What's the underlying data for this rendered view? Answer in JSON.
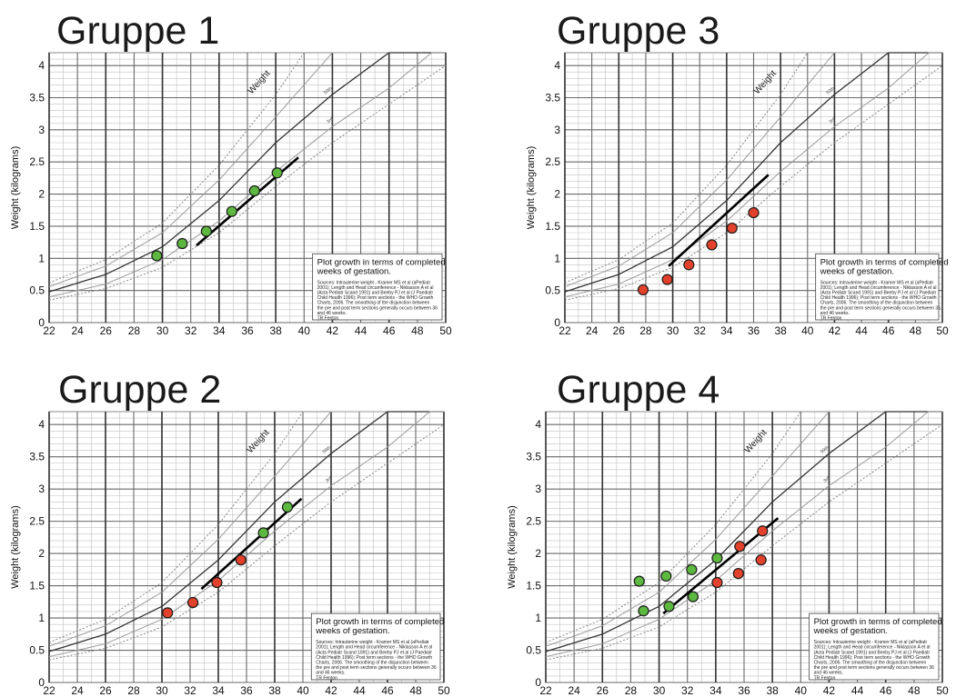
{
  "chart_data": [
    {
      "type": "scatter",
      "title": "Gruppe 1",
      "ylabel": "Weight (kilograms)",
      "xlim": [
        22,
        50
      ],
      "ylim": [
        0,
        4.2
      ],
      "x_ticks": [
        22,
        24,
        26,
        28,
        30,
        32,
        34,
        36,
        38,
        40,
        42,
        44,
        46,
        48,
        50
      ],
      "x_tick_labels": [
        "22",
        "24",
        "26",
        "28",
        "30",
        "32",
        "34",
        "36",
        "38",
        "40",
        "42",
        "44",
        "46",
        "48",
        "50"
      ],
      "y_ticks": [
        0,
        0.5,
        1,
        1.5,
        2,
        2.5,
        3,
        3.5,
        4
      ],
      "y_tick_labels": [
        "0",
        "0.5",
        "1",
        "1.5",
        "2",
        "2.5",
        "3",
        "3.5",
        "4"
      ],
      "curve_label": "Weight",
      "percentile_labels": [
        "50th",
        "3rd"
      ],
      "note_title": "Plot growth in terms of completed weeks of gestation.",
      "note_body": "Sources: Intrauterine weight - Kramer MS et al (aPediatr 2001); Length and Head circumference - Niklasson A et al (Acta Pediatr Scand 1991) and Beeby PJ et al (J Paediatr Child Health 1996); Post term sections - the WHO Growth Charts, 2006.  The smoothing of the disjunction between the pre and post term sections generally occurs between 36 and 46 weeks.",
      "note_author": "TR Fenton",
      "trend_line": {
        "x": [
          32.4,
          39.6
        ],
        "y": [
          1.2,
          2.57
        ]
      },
      "series": [
        {
          "color": "#5cb83f",
          "points": [
            [
              29.6,
              1.04
            ],
            [
              31.4,
              1.23
            ],
            [
              33.1,
              1.42
            ],
            [
              34.9,
              1.73
            ],
            [
              36.5,
              2.05
            ],
            [
              38.1,
              2.33
            ]
          ]
        }
      ]
    },
    {
      "type": "scatter",
      "title": "Gruppe 3",
      "ylabel": "Weight (kilograms)",
      "xlim": [
        22,
        50
      ],
      "ylim": [
        0,
        4.2
      ],
      "x_ticks": [
        22,
        24,
        26,
        28,
        30,
        32,
        34,
        36,
        38,
        40,
        42,
        44,
        46,
        48,
        50
      ],
      "x_tick_labels": [
        "22",
        "24",
        "26",
        "28",
        "30",
        "32",
        "34",
        "36",
        "38",
        "40",
        "42",
        "44",
        "46",
        "48",
        "50"
      ],
      "y_ticks": [
        0,
        0.5,
        1,
        1.5,
        2,
        2.5,
        3,
        3.5,
        4
      ],
      "y_tick_labels": [
        "0",
        "0.5",
        "1",
        "1.5",
        "2",
        "2.5",
        "3",
        "3.5",
        "4"
      ],
      "curve_label": "Weight",
      "percentile_labels": [
        "50th",
        "3rd"
      ],
      "note_title": "Plot growth in terms of completed weeks of gestation.",
      "note_body": "Sources: Intrauterine weight - Kramer MS et al (aPediatr 2001); Length and Head circumference - Niklasson A et al (Acta Pediatr Scand 1991) and Beeby PJ et al (J Paediatr Child Health 1996); Post term sections - the WHO Growth Charts, 2006.  The smoothing of the disjunction between the pre and post term sections generally occurs between 36 and 46 weeks.",
      "note_author": "TR Fenton",
      "trend_line": {
        "x": [
          29.7,
          37.1
        ],
        "y": [
          0.88,
          2.3
        ]
      },
      "series": [
        {
          "color": "#e2412b",
          "points": [
            [
              27.8,
              0.51
            ],
            [
              29.6,
              0.67
            ],
            [
              31.2,
              0.9
            ],
            [
              32.9,
              1.21
            ],
            [
              34.4,
              1.47
            ],
            [
              36.0,
              1.71
            ]
          ]
        }
      ]
    },
    {
      "type": "scatter",
      "title": "Gruppe 2",
      "ylabel": "Weight (kilograms)",
      "xlim": [
        22,
        50
      ],
      "ylim": [
        0,
        4.2
      ],
      "x_ticks": [
        22,
        24,
        26,
        28,
        30,
        32,
        34,
        36,
        38,
        40,
        42,
        44,
        46,
        48,
        50
      ],
      "x_tick_labels": [
        "22",
        "24",
        "26",
        "28",
        "30",
        "32",
        "34",
        "36",
        "38",
        "40",
        "42",
        "44",
        "46",
        "48",
        "50"
      ],
      "y_ticks": [
        0,
        0.5,
        1,
        1.5,
        2,
        2.5,
        3,
        3.5,
        4
      ],
      "y_tick_labels": [
        "0",
        "0.5",
        "1",
        "1.5",
        "2",
        "2.5",
        "3",
        "3.5",
        "4"
      ],
      "curve_label": "Weight",
      "percentile_labels": [
        "50th",
        "3rd"
      ],
      "note_title": "Plot growth in terms of completed weeks of gestation.",
      "note_body": "Sources: Intrauterine weight - Kramer MS et al (aPediatr 2001); Length and Head circumference - Niklasson A et al (Acta Pediatr Scand 1991) and Beeby PJ et al (J Paediatr Child Health 1996); Post term sections - the WHO Growth Charts, 2006.  The smoothing of the disjunction between the pre and post term sections generally occurs between 36 and 46 weeks.",
      "note_author": "TR Fenton",
      "trend_line": {
        "x": [
          32.8,
          39.9
        ],
        "y": [
          1.45,
          2.85
        ]
      },
      "series": [
        {
          "color": "#e2412b",
          "points": [
            [
              30.4,
              1.08
            ],
            [
              32.2,
              1.24
            ],
            [
              33.9,
              1.55
            ],
            [
              35.6,
              1.9
            ]
          ]
        },
        {
          "color": "#5cb83f",
          "points": [
            [
              37.2,
              2.32
            ],
            [
              38.9,
              2.72
            ]
          ]
        }
      ]
    },
    {
      "type": "scatter",
      "title": "Gruppe 4",
      "ylabel": "Weight (kilograms)",
      "xlim": [
        22,
        50
      ],
      "ylim": [
        0,
        4.2
      ],
      "x_ticks": [
        22,
        24,
        26,
        28,
        30,
        32,
        34,
        36,
        38,
        40,
        42,
        44,
        46,
        48,
        50
      ],
      "x_tick_labels": [
        "22",
        "24",
        "26",
        "28",
        "30",
        "32",
        "34",
        "36",
        "38",
        "40",
        "42",
        "44",
        "46",
        "48",
        "50"
      ],
      "y_ticks": [
        0,
        0.5,
        1,
        1.5,
        2,
        2.5,
        3,
        3.5,
        4
      ],
      "y_tick_labels": [
        "0",
        "0.5",
        "1",
        "1.5",
        "2",
        "2.5",
        "3",
        "3.5",
        "4"
      ],
      "curve_label": "Weight",
      "percentile_labels": [
        "50th",
        "3rd"
      ],
      "note_title": "Plot growth in terms of completed weeks of gestation.",
      "note_body": "Sources: Intrauterine weight - Kramer MS et al (aPediatr 2001); Length and Head circumference - Niklasson A et al (Acta Pediatr Scand 1991) and Beeby PJ et al (J Paediatr Child Health 1996); Post term sections - the WHO Growth Charts, 2006.  The smoothing of the disjunction between the pre and post term sections generally occurs between 36 and 46 weeks.",
      "note_author": "TR Fenton",
      "trend_line": {
        "x": [
          30.3,
          38.4
        ],
        "y": [
          1.07,
          2.55
        ]
      },
      "series": [
        {
          "color": "#5cb83f",
          "points": [
            [
              28.6,
              1.57
            ],
            [
              28.9,
              1.11
            ],
            [
              30.5,
              1.65
            ],
            [
              30.7,
              1.18
            ],
            [
              32.3,
              1.75
            ],
            [
              32.4,
              1.33
            ],
            [
              34.1,
              1.93
            ]
          ]
        },
        {
          "color": "#e2412b",
          "points": [
            [
              34.1,
              1.55
            ],
            [
              35.6,
              1.69
            ],
            [
              35.7,
              2.11
            ],
            [
              37.2,
              1.9
            ],
            [
              37.3,
              2.35
            ]
          ]
        }
      ]
    }
  ]
}
